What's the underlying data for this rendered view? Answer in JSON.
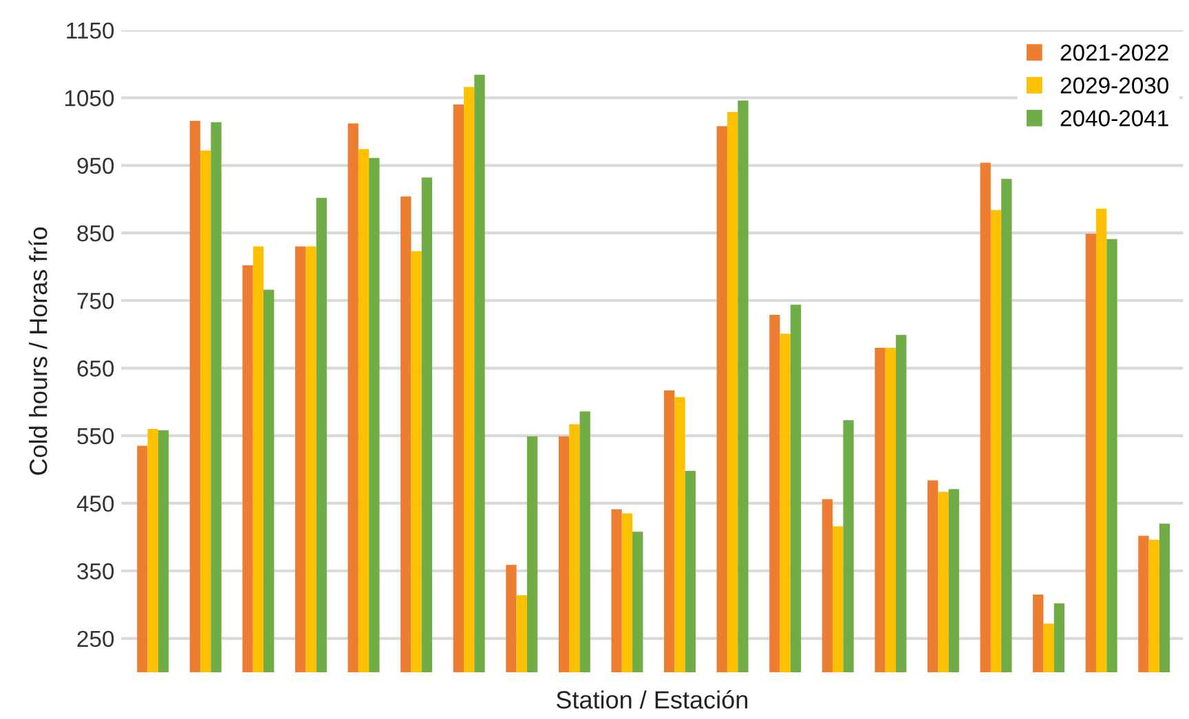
{
  "chart_data": {
    "type": "bar",
    "xlabel": "Station / Estación",
    "ylabel": "Cold hours / Horas frío",
    "categories": [
      null,
      null,
      null,
      null,
      null,
      null,
      null,
      null,
      null,
      null,
      null,
      null,
      null,
      null,
      null,
      null,
      null,
      null,
      null,
      null
    ],
    "series": [
      {
        "name": "2021-2022",
        "color": "#ed7d31",
        "values": [
          535,
          1016,
          802,
          830,
          1012,
          904,
          1040,
          359,
          549,
          441,
          617,
          1008,
          729,
          456,
          680,
          484,
          954,
          315,
          849,
          402
        ]
      },
      {
        "name": "2029-2030",
        "color": "#ffc000",
        "values": [
          560,
          972,
          830,
          830,
          974,
          823,
          1066,
          314,
          567,
          435,
          607,
          1029,
          701,
          416,
          680,
          467,
          884,
          272,
          886,
          396
        ]
      },
      {
        "name": "2040-2041",
        "color": "#70ad47",
        "values": [
          558,
          1014,
          766,
          902,
          961,
          932,
          1084,
          549,
          586,
          408,
          498,
          1046,
          744,
          573,
          699,
          471,
          930,
          302,
          841,
          420
        ]
      }
    ],
    "ylim": [
      200,
      1150
    ],
    "yticks": [
      250,
      350,
      450,
      550,
      650,
      750,
      850,
      950,
      1050,
      1150
    ],
    "grid": "y",
    "legend": "top right"
  }
}
